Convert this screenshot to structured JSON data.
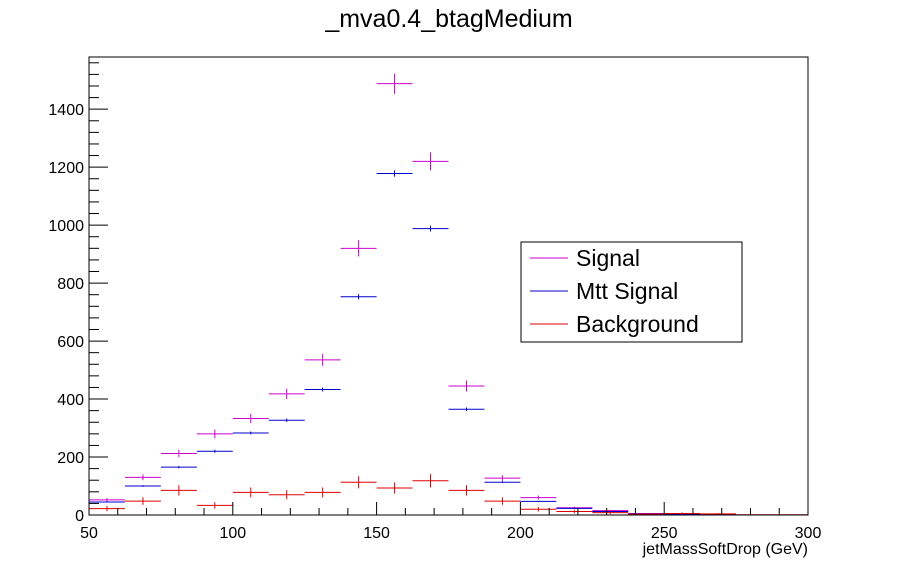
{
  "chart_data": {
    "type": "scatter",
    "title": "_mva0.4_btagMedium",
    "xlabel": "jetMassSoftDrop (GeV)",
    "ylabel": "",
    "xlim": [
      50,
      300
    ],
    "ylim": [
      0,
      1580
    ],
    "x_major_ticks": [
      50,
      100,
      150,
      200,
      250,
      300
    ],
    "x_tick_labels": [
      "50",
      "100",
      "150",
      "200",
      "250",
      "300"
    ],
    "y_major_ticks": [
      0,
      200,
      400,
      600,
      800,
      1000,
      1200,
      1400
    ],
    "y_tick_labels": [
      "0",
      "200",
      "400",
      "600",
      "800",
      "1000",
      "1200",
      "1400"
    ],
    "bin_edges": [
      50,
      62.5,
      75,
      87.5,
      100,
      112.5,
      125,
      137.5,
      150,
      162.5,
      175,
      187.5,
      200,
      212.5,
      225,
      237.5,
      250,
      262.5,
      275,
      287.5,
      300
    ],
    "grid": false,
    "legend_position": "right",
    "series": [
      {
        "name": "Signal",
        "color": "#cc00cc",
        "values": [
          52,
          130,
          212,
          280,
          333,
          418,
          535,
          920,
          1488,
          1220,
          445,
          127,
          60,
          25,
          15,
          5,
          3,
          1,
          0,
          0
        ],
        "errors": [
          6,
          10,
          13,
          15,
          16,
          18,
          21,
          28,
          35,
          31,
          19,
          10,
          7,
          4,
          3,
          2,
          1,
          1,
          0,
          0
        ]
      },
      {
        "name": "Mtt Signal",
        "color": "#0000cc",
        "values": [
          45,
          100,
          165,
          220,
          283,
          327,
          433,
          753,
          1178,
          988,
          365,
          113,
          47,
          23,
          12,
          4,
          2,
          1,
          0,
          0
        ],
        "errors": [
          2,
          3,
          4,
          5,
          5,
          6,
          7,
          9,
          11,
          10,
          6,
          3,
          2,
          2,
          1,
          1,
          1,
          0,
          0,
          0
        ]
      },
      {
        "name": "Background",
        "color": "#dd0000",
        "values": [
          22,
          48,
          85,
          33,
          78,
          70,
          78,
          113,
          93,
          118,
          85,
          48,
          20,
          12,
          8,
          3,
          5,
          4,
          1,
          1
        ],
        "errors": [
          9,
          13,
          18,
          11,
          17,
          16,
          17,
          21,
          19,
          23,
          18,
          13,
          8,
          6,
          5,
          3,
          4,
          3,
          1,
          1
        ]
      }
    ]
  }
}
